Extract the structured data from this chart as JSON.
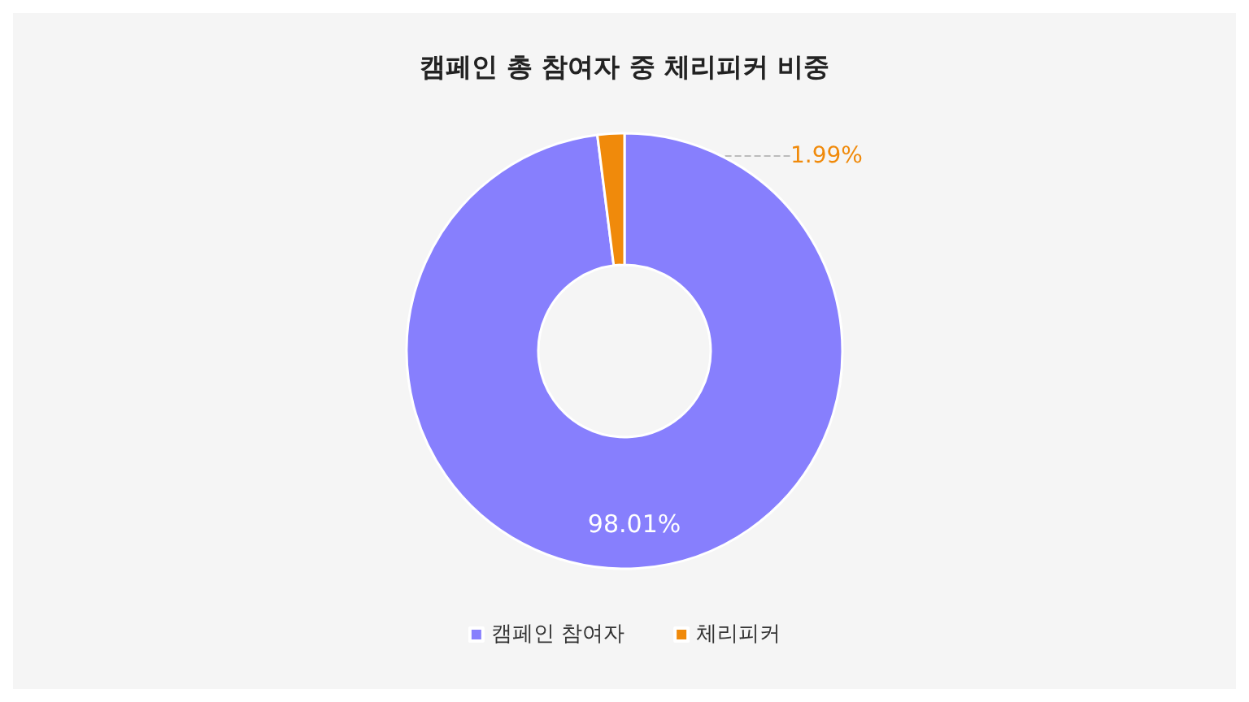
{
  "chart_data": {
    "type": "donut",
    "title": "캠페인 총 참여자 중 체리피커 비중",
    "categories": [
      "캠페인 참여자",
      "체리피커"
    ],
    "values": [
      98.01,
      1.99
    ],
    "colors": [
      "#877ffd",
      "#f08a0b"
    ],
    "value_labels": [
      "98.01%",
      "1.99%"
    ],
    "legend": "bottom"
  }
}
